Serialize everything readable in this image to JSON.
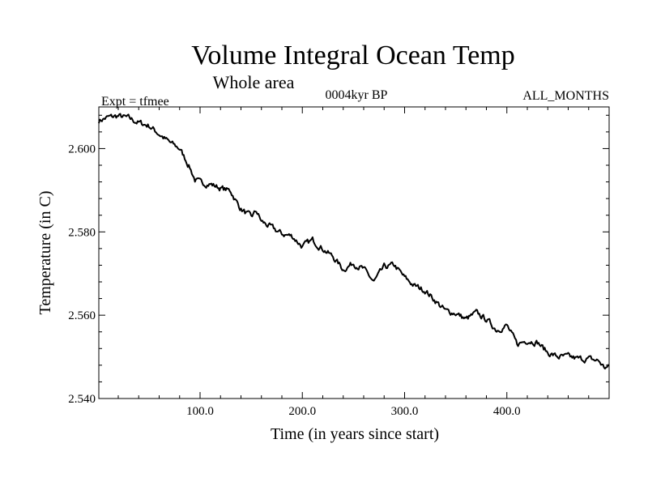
{
  "chart_data": {
    "type": "line",
    "title": "Volume Integral Ocean Temp",
    "subtitle": "Whole area",
    "left_label": "Expt = tfmee",
    "center_label": "0004kyr BP",
    "right_label": "ALL_MONTHS",
    "xlabel": "Time (in years since start)",
    "ylabel": "Temperature (in C)",
    "xlim": [
      1,
      500
    ],
    "ylim": [
      2.54,
      2.61
    ],
    "x_ticks": [
      100,
      200,
      300,
      400
    ],
    "x_tick_labels": [
      "100.0",
      "200.0",
      "300.0",
      "400.0"
    ],
    "y_ticks": [
      2.54,
      2.56,
      2.58,
      2.6
    ],
    "y_tick_labels": [
      "2.540",
      "2.560",
      "2.580",
      "2.600"
    ],
    "grid": false,
    "line_color": "#000000",
    "series": [
      {
        "x": [
          1,
          10,
          20,
          30,
          40,
          50,
          60,
          70,
          80,
          90,
          95,
          100,
          110,
          120,
          130,
          135,
          140,
          150,
          155,
          160,
          170,
          180,
          190,
          200,
          210,
          220,
          230,
          240,
          250,
          260,
          270,
          280,
          290,
          300,
          310,
          320,
          330,
          340,
          350,
          360,
          370,
          380,
          390,
          400,
          410,
          420,
          430,
          440,
          450,
          460,
          470,
          480,
          490,
          495,
          500
        ],
        "values": [
          2.6067,
          2.6075,
          2.6078,
          2.6073,
          2.6062,
          2.6055,
          2.6035,
          2.6015,
          2.6,
          2.5955,
          2.5925,
          2.5918,
          2.5915,
          2.5905,
          2.5898,
          2.5875,
          2.5855,
          2.5835,
          2.585,
          2.5825,
          2.581,
          2.5795,
          2.579,
          2.5765,
          2.578,
          2.576,
          2.574,
          2.571,
          2.5725,
          2.571,
          2.568,
          2.5715,
          2.572,
          2.569,
          2.567,
          2.566,
          2.5635,
          2.561,
          2.5605,
          2.559,
          2.5605,
          2.559,
          2.5565,
          2.5575,
          2.553,
          2.554,
          2.5535,
          2.551,
          2.55,
          2.55,
          2.5495,
          2.5495,
          2.549,
          2.5475,
          2.5475
        ]
      }
    ]
  }
}
